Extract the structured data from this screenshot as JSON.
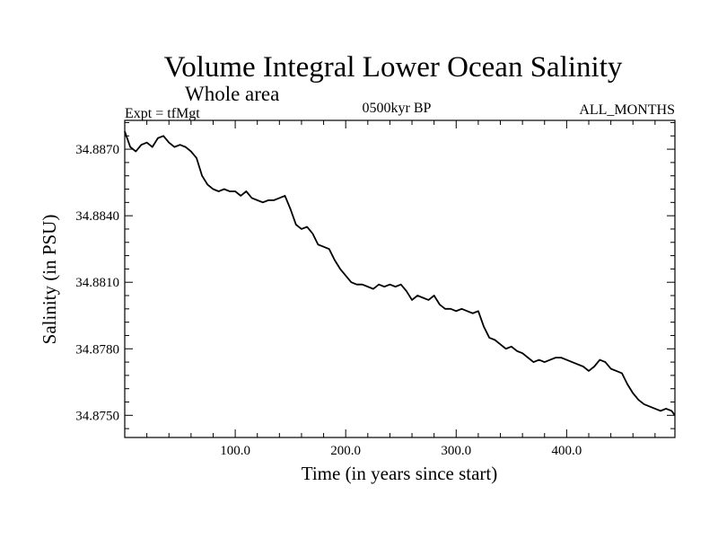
{
  "header": {
    "title": "Volume Integral Lower Ocean Salinity",
    "region": "Whole area",
    "experiment": "Expt = tfMgt",
    "period": "0500kyr BP",
    "months": "ALL_MONTHS"
  },
  "chart_data": {
    "type": "line",
    "title": "Volume Integral Lower Ocean Salinity",
    "subtitle": "Whole area",
    "xlabel": "Time (in years since start)",
    "ylabel": "Salinity (in PSU)",
    "xlim": [
      0,
      498
    ],
    "ylim": [
      34.874,
      34.8883
    ],
    "grid": false,
    "x_ticks": [
      100,
      200,
      300,
      400
    ],
    "x_tick_labels": [
      "100.0",
      "200.0",
      "300.0",
      "400.0"
    ],
    "y_ticks": [
      34.875,
      34.878,
      34.881,
      34.884,
      34.887
    ],
    "y_tick_labels": [
      "34.8750",
      "34.8780",
      "34.8810",
      "34.8840",
      "34.8870"
    ],
    "series": [
      {
        "color": "#000000",
        "x": [
          0,
          5,
          10,
          15,
          20,
          25,
          30,
          35,
          40,
          45,
          50,
          55,
          60,
          65,
          70,
          75,
          80,
          85,
          90,
          95,
          100,
          105,
          110,
          115,
          120,
          125,
          130,
          135,
          140,
          145,
          150,
          155,
          160,
          165,
          170,
          175,
          180,
          185,
          190,
          195,
          200,
          205,
          210,
          215,
          220,
          225,
          230,
          235,
          240,
          245,
          250,
          255,
          260,
          265,
          270,
          275,
          280,
          285,
          290,
          295,
          300,
          305,
          310,
          315,
          320,
          325,
          330,
          335,
          340,
          345,
          350,
          355,
          360,
          365,
          370,
          375,
          380,
          385,
          390,
          395,
          400,
          405,
          410,
          415,
          420,
          425,
          430,
          435,
          440,
          445,
          450,
          455,
          460,
          465,
          470,
          475,
          480,
          485,
          490,
          495,
          498
        ],
        "y": [
          34.8878,
          34.8871,
          34.8869,
          34.8872,
          34.8873,
          34.8871,
          34.8875,
          34.8876,
          34.8873,
          34.8871,
          34.8872,
          34.8871,
          34.8869,
          34.8866,
          34.8858,
          34.8854,
          34.8852,
          34.8851,
          34.8852,
          34.8851,
          34.8851,
          34.8849,
          34.8851,
          34.8848,
          34.8847,
          34.8846,
          34.8847,
          34.8847,
          34.8848,
          34.8849,
          34.8843,
          34.8836,
          34.8834,
          34.8835,
          34.8832,
          34.8827,
          34.8826,
          34.8825,
          34.882,
          34.8816,
          34.8813,
          34.881,
          34.8809,
          34.8809,
          34.8808,
          34.8807,
          34.8809,
          34.8808,
          34.8809,
          34.8808,
          34.8809,
          34.8806,
          34.8802,
          34.8804,
          34.8803,
          34.8802,
          34.8804,
          34.88,
          34.8798,
          34.8798,
          34.8797,
          34.8798,
          34.8797,
          34.8796,
          34.8797,
          34.879,
          34.8785,
          34.8784,
          34.8782,
          34.878,
          34.8781,
          34.8779,
          34.8778,
          34.8776,
          34.8774,
          34.8775,
          34.8774,
          34.8775,
          34.8776,
          34.8776,
          34.8775,
          34.8774,
          34.8773,
          34.8772,
          34.877,
          34.8772,
          34.8775,
          34.8774,
          34.8771,
          34.877,
          34.8769,
          34.8764,
          34.876,
          34.8757,
          34.8755,
          34.8754,
          34.8753,
          34.8752,
          34.8753,
          34.8752,
          34.875
        ]
      }
    ]
  }
}
